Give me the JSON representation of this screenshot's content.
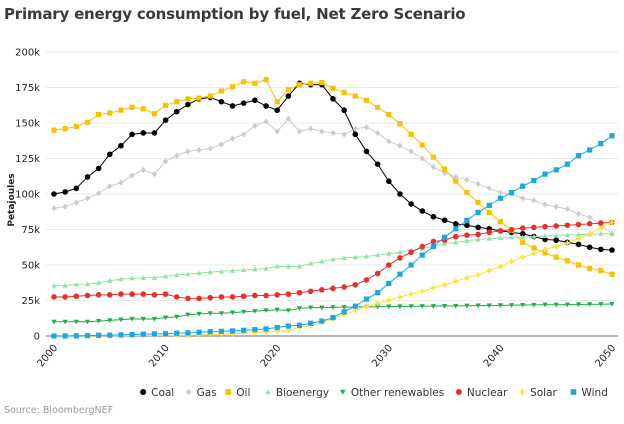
{
  "title": "Primary energy consumption by fuel, Net Zero Scenario",
  "source": "Source: BloombergNEF",
  "chart_data": {
    "type": "line",
    "title": "Primary energy consumption by fuel, Net Zero Scenario",
    "xlabel": "",
    "ylabel": "Petajoules",
    "xlim": [
      2000,
      2050
    ],
    "ylim": [
      0,
      200000
    ],
    "x_ticks": [
      "2000",
      "2010",
      "2020",
      "2030",
      "2040",
      "2050"
    ],
    "y_ticks": [
      "0",
      "25k",
      "50k",
      "75k",
      "100k",
      "125k",
      "150k",
      "175k",
      "200k"
    ],
    "grid": "horizontal",
    "legend_position": "bottom-right",
    "x_start": 2000,
    "unit_multiplier": 1000,
    "series": [
      {
        "name": "Coal",
        "color": "#000000",
        "marker": "circle",
        "values": [
          100,
          101.5,
          104,
          112,
          118,
          128,
          134,
          142,
          143,
          143,
          152,
          158,
          163,
          167,
          168,
          165,
          162,
          164,
          166,
          162,
          159,
          169,
          178,
          177,
          177,
          167,
          159,
          142,
          130,
          121,
          109,
          100,
          93,
          88,
          84,
          81.5,
          79,
          78,
          76.5,
          75.5,
          74,
          73,
          72,
          70,
          68,
          67.5,
          66,
          64.5,
          62.5,
          61,
          60.5
        ]
      },
      {
        "name": "Gas",
        "color": "#cccccc",
        "marker": "diamond",
        "values": [
          90,
          91,
          94,
          97,
          100.5,
          105.5,
          108,
          113,
          117,
          114,
          123,
          127,
          130,
          131,
          132,
          135,
          139,
          142,
          148,
          151,
          144,
          153,
          144,
          146,
          144,
          143,
          142,
          146,
          147,
          143,
          137,
          134,
          130,
          125,
          119,
          115,
          112,
          110,
          107,
          104,
          101,
          100,
          97,
          95.5,
          92.5,
          91,
          89.5,
          86,
          83.5,
          78.5,
          72
        ]
      },
      {
        "name": "Oil",
        "color": "#f7c200",
        "marker": "square",
        "values": [
          145,
          146,
          147.5,
          150.5,
          156,
          157,
          159,
          161,
          160,
          156.5,
          162.5,
          165,
          167,
          167.5,
          169,
          172.5,
          175.5,
          179,
          178,
          180.5,
          165,
          173.5,
          177,
          178,
          178.5,
          174.5,
          171.5,
          169,
          166,
          161,
          156,
          149.5,
          142,
          134.5,
          126,
          117.5,
          109,
          101,
          94,
          87,
          80.5,
          74.5,
          66,
          62,
          58.5,
          55.5,
          53,
          50,
          47.5,
          46,
          43.5
        ]
      },
      {
        "name": "Bioenergy",
        "color": "#8fe3aa",
        "marker": "triangle-up",
        "values": [
          35.5,
          35.5,
          36.4,
          36.5,
          37.5,
          39,
          40,
          40.7,
          41,
          41,
          42,
          43,
          43.5,
          44.3,
          45,
          45.5,
          46,
          46.5,
          47,
          47.5,
          49,
          49,
          49,
          51,
          52.5,
          54,
          55,
          55.5,
          56,
          57,
          58,
          59,
          60.5,
          61.5,
          63,
          65,
          66,
          67,
          68,
          68.5,
          69,
          69.5,
          69.5,
          70,
          70.5,
          71,
          71,
          71.5,
          71.5,
          72,
          72
        ]
      },
      {
        "name": "Other renewables",
        "color": "#1fae4a",
        "marker": "triangle-down",
        "values": [
          10,
          10,
          10,
          10,
          10.5,
          11,
          11.5,
          12,
          12,
          12,
          13,
          13.5,
          15,
          15.5,
          16,
          16,
          16.5,
          17,
          17.5,
          18,
          18.5,
          18,
          19.5,
          20,
          20,
          20.2,
          20.3,
          20.4,
          20.5,
          20.6,
          20.7,
          20.8,
          20.9,
          21,
          21,
          21.1,
          21.2,
          21.3,
          21.4,
          21.5,
          21.6,
          21.7,
          21.8,
          21.9,
          22,
          22,
          22.1,
          22.2,
          22.3,
          22.4,
          22.5
        ]
      },
      {
        "name": "Nuclear",
        "color": "#e8302a",
        "marker": "circle",
        "values": [
          27.5,
          27.5,
          28,
          28.5,
          29,
          29,
          29.5,
          29.5,
          29.5,
          29,
          29.5,
          27.5,
          26.5,
          26.5,
          27,
          27.5,
          27.5,
          28,
          28.5,
          28.5,
          29,
          29.5,
          30.5,
          31.5,
          32.5,
          33.5,
          34.5,
          36,
          39.5,
          44,
          50,
          55,
          59,
          63,
          66.5,
          67.5,
          70,
          71,
          71.5,
          73,
          74,
          75,
          76,
          76.5,
          77,
          77.5,
          78,
          78.5,
          79,
          79.5,
          80
        ]
      },
      {
        "name": "Solar",
        "color": "#ffe135",
        "marker": "plus",
        "values": [
          0.2,
          0.2,
          0.2,
          0.2,
          0.2,
          0.2,
          0.3,
          0.3,
          0.3,
          0.3,
          0.4,
          0.4,
          0.5,
          0.7,
          1,
          1.2,
          1.5,
          2,
          2.5,
          3,
          3.3,
          4,
          6,
          7.5,
          9.5,
          12,
          15,
          18,
          21,
          23,
          25,
          27.5,
          29.5,
          31.5,
          34,
          36,
          38.5,
          41,
          43,
          46,
          49,
          52.5,
          55.5,
          58,
          61,
          63,
          65.5,
          68.5,
          72,
          76,
          80
        ]
      },
      {
        "name": "Wind",
        "color": "#1ba7e1",
        "marker": "square",
        "values": [
          0,
          0,
          0.1,
          0.3,
          0.5,
          0.6,
          0.8,
          1,
          1.3,
          1.5,
          1.6,
          2,
          2.2,
          2.6,
          3,
          3.3,
          3.6,
          4,
          4.5,
          5,
          6,
          7,
          7.5,
          9,
          10.5,
          13,
          17,
          21,
          26,
          30.5,
          37,
          43.5,
          50,
          57,
          63,
          69.5,
          75.5,
          81.5,
          87,
          92,
          97,
          101,
          105.5,
          109.5,
          114,
          117,
          121,
          127,
          131,
          135.5,
          141
        ]
      }
    ]
  }
}
